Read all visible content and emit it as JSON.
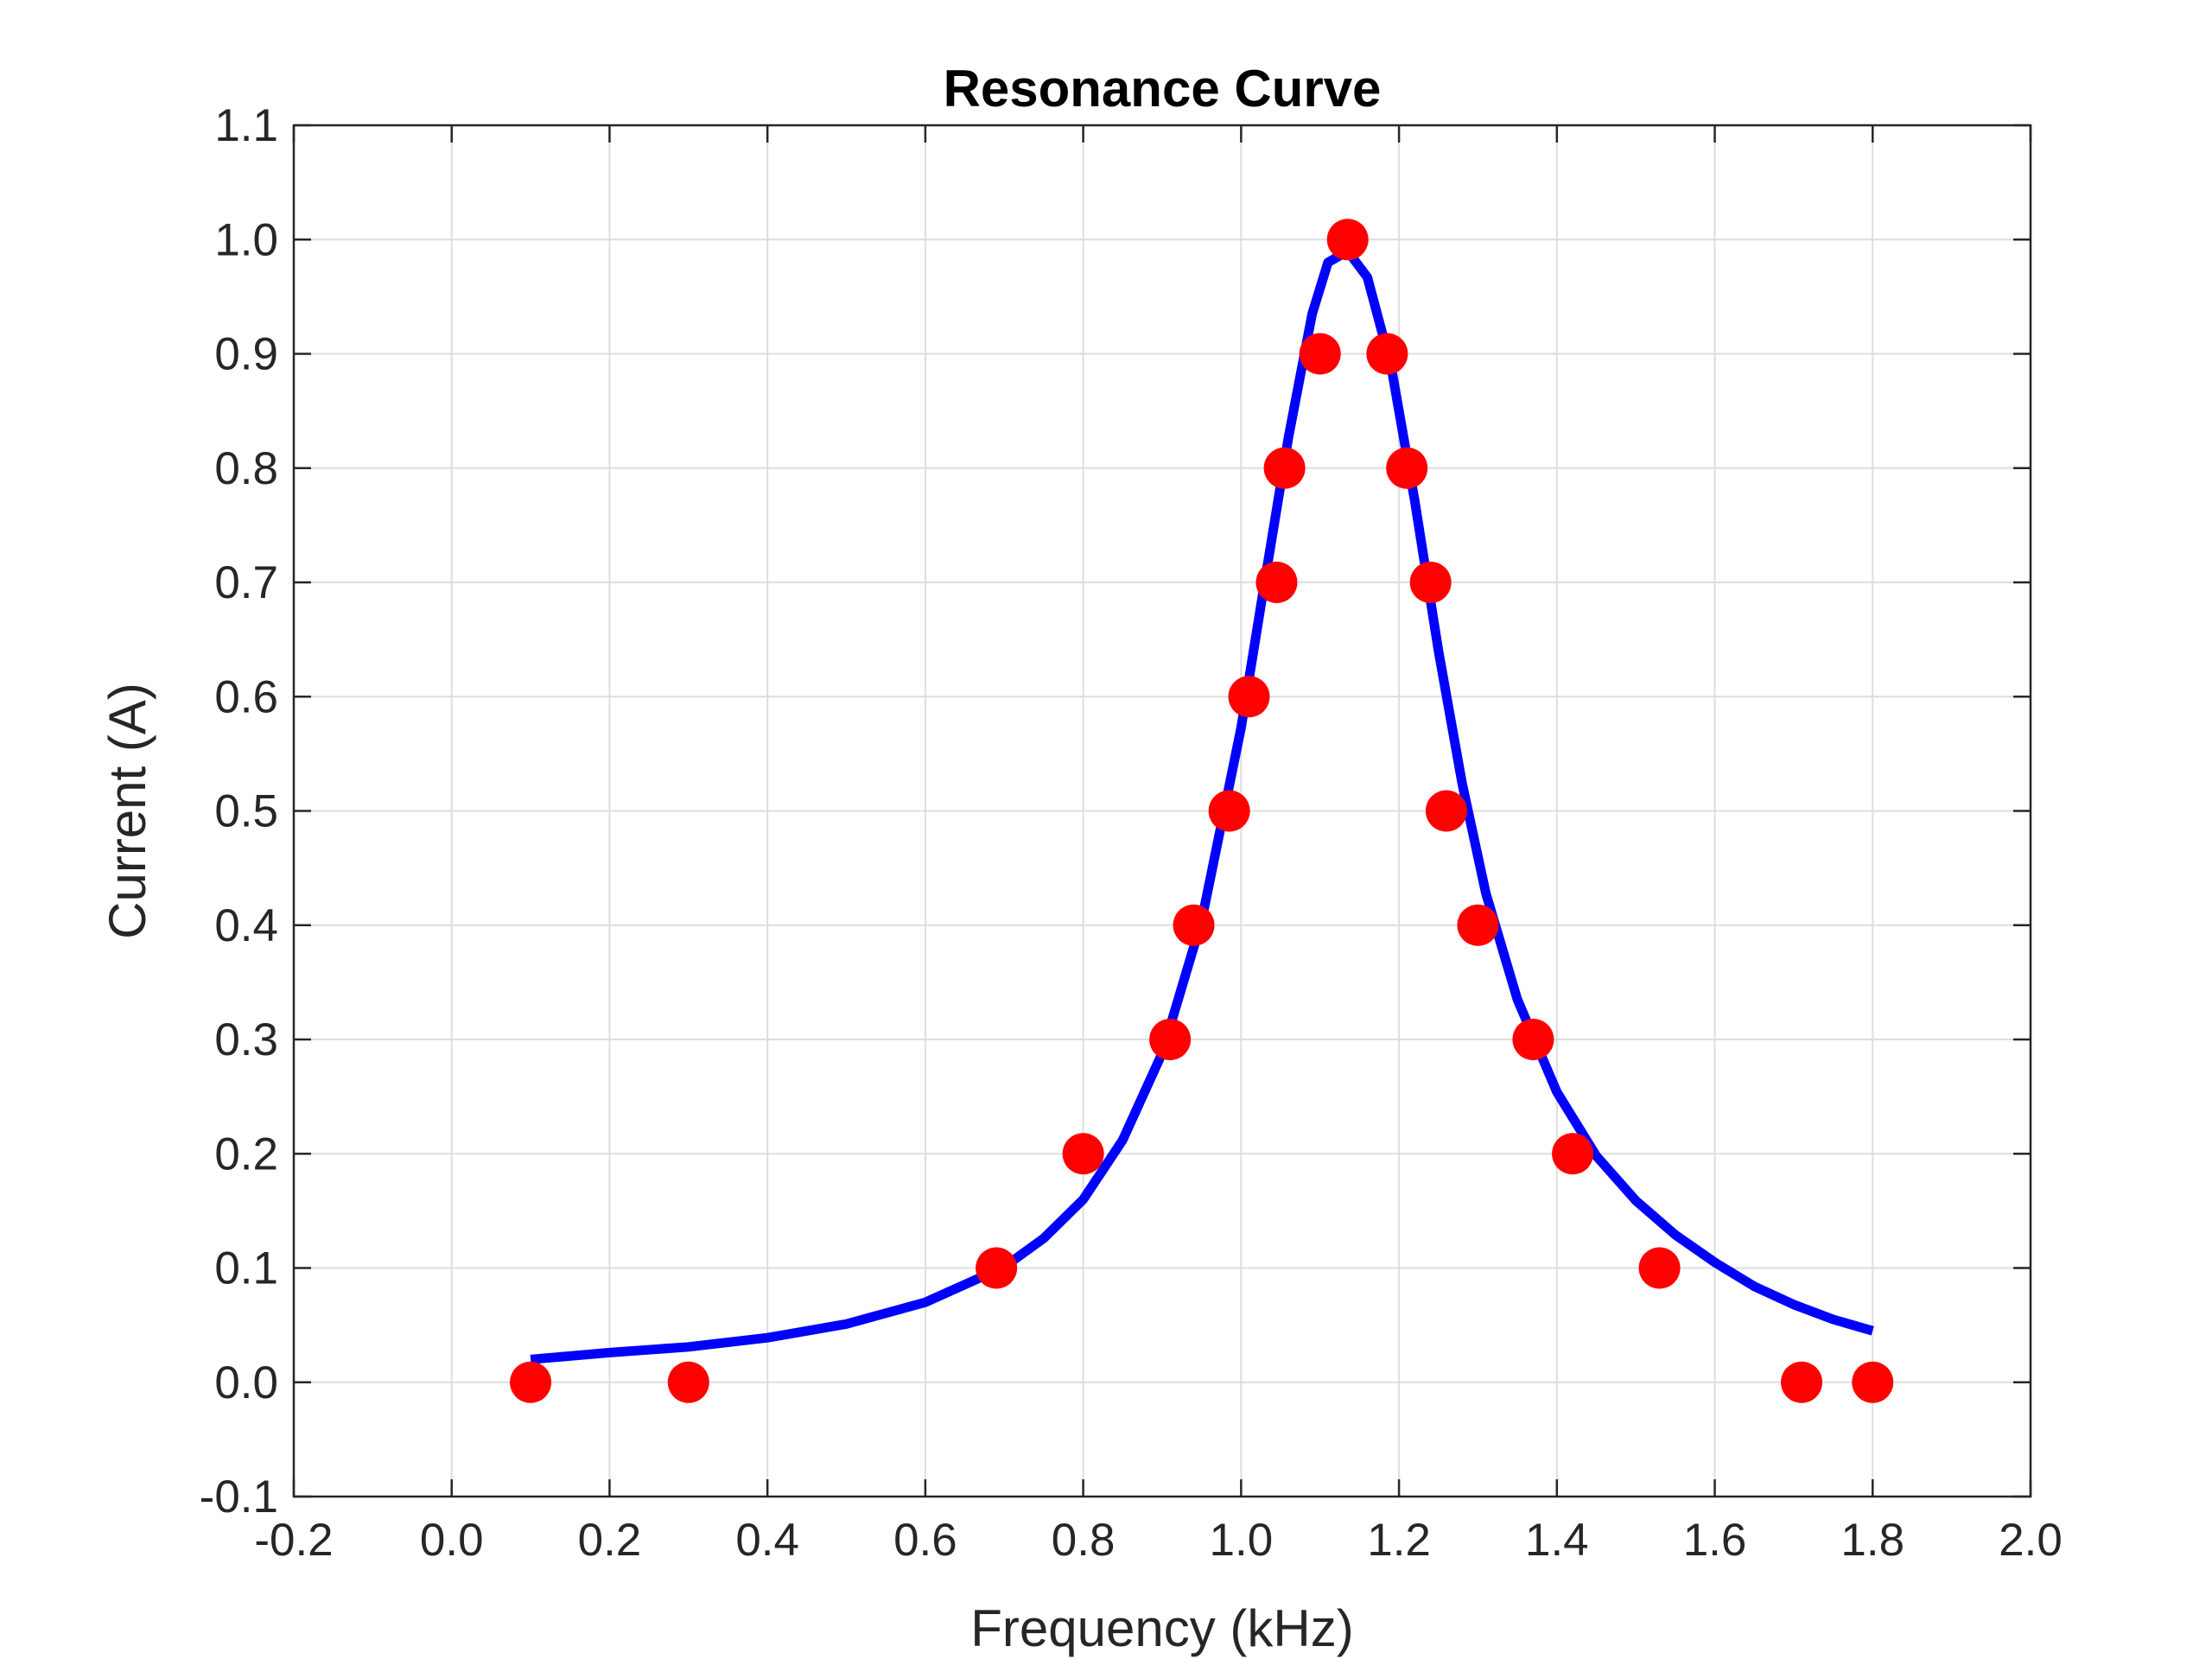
{
  "chart_data": {
    "type": "scatter",
    "title": "Resonance Curve",
    "xlabel": "Frequency (kHz)",
    "ylabel": "Current (A)",
    "xlim": [
      -0.2,
      2.0
    ],
    "ylim": [
      -0.1,
      1.1
    ],
    "xticks": [
      "-0.2",
      "0.0",
      "0.2",
      "0.4",
      "0.6",
      "0.8",
      "1.0",
      "1.2",
      "1.4",
      "1.6",
      "1.8",
      "2.0"
    ],
    "yticks": [
      "-0.1",
      "0.0",
      "0.1",
      "0.2",
      "0.3",
      "0.4",
      "0.5",
      "0.6",
      "0.7",
      "0.8",
      "0.9",
      "1.0",
      "1.1"
    ],
    "grid": true,
    "legend": "none",
    "series": [
      {
        "kind": "scatter",
        "color": "#ff0000",
        "points": [
          [
            0.1,
            0.0
          ],
          [
            0.3,
            0.0
          ],
          [
            0.69,
            0.1
          ],
          [
            0.8,
            0.2
          ],
          [
            0.91,
            0.3
          ],
          [
            0.94,
            0.4
          ],
          [
            0.985,
            0.5
          ],
          [
            1.01,
            0.6
          ],
          [
            1.045,
            0.7
          ],
          [
            1.055,
            0.8
          ],
          [
            1.1,
            0.9
          ],
          [
            1.135,
            1.0
          ],
          [
            1.185,
            0.9
          ],
          [
            1.21,
            0.8
          ],
          [
            1.24,
            0.7
          ],
          [
            1.26,
            0.5
          ],
          [
            1.3,
            0.4
          ],
          [
            1.37,
            0.3
          ],
          [
            1.42,
            0.2
          ],
          [
            1.53,
            0.1
          ],
          [
            1.71,
            0.0
          ],
          [
            1.8,
            0.0
          ]
        ]
      },
      {
        "kind": "line",
        "color": "#0000ff",
        "points": [
          [
            0.1,
            0.02
          ],
          [
            0.2,
            0.026
          ],
          [
            0.3,
            0.031
          ],
          [
            0.4,
            0.039
          ],
          [
            0.5,
            0.051
          ],
          [
            0.6,
            0.07
          ],
          [
            0.7,
            0.101
          ],
          [
            0.75,
            0.126
          ],
          [
            0.8,
            0.16
          ],
          [
            0.85,
            0.212
          ],
          [
            0.9,
            0.288
          ],
          [
            0.95,
            0.404
          ],
          [
            1.0,
            0.573
          ],
          [
            1.03,
            0.701
          ],
          [
            1.06,
            0.827
          ],
          [
            1.09,
            0.935
          ],
          [
            1.11,
            0.98
          ],
          [
            1.135,
            0.99
          ],
          [
            1.16,
            0.967
          ],
          [
            1.19,
            0.889
          ],
          [
            1.22,
            0.771
          ],
          [
            1.25,
            0.64
          ],
          [
            1.28,
            0.524
          ],
          [
            1.31,
            0.428
          ],
          [
            1.35,
            0.335
          ],
          [
            1.4,
            0.254
          ],
          [
            1.45,
            0.198
          ],
          [
            1.5,
            0.159
          ],
          [
            1.55,
            0.129
          ],
          [
            1.6,
            0.105
          ],
          [
            1.65,
            0.084
          ],
          [
            1.7,
            0.068
          ],
          [
            1.75,
            0.055
          ],
          [
            1.8,
            0.045
          ]
        ]
      }
    ]
  }
}
